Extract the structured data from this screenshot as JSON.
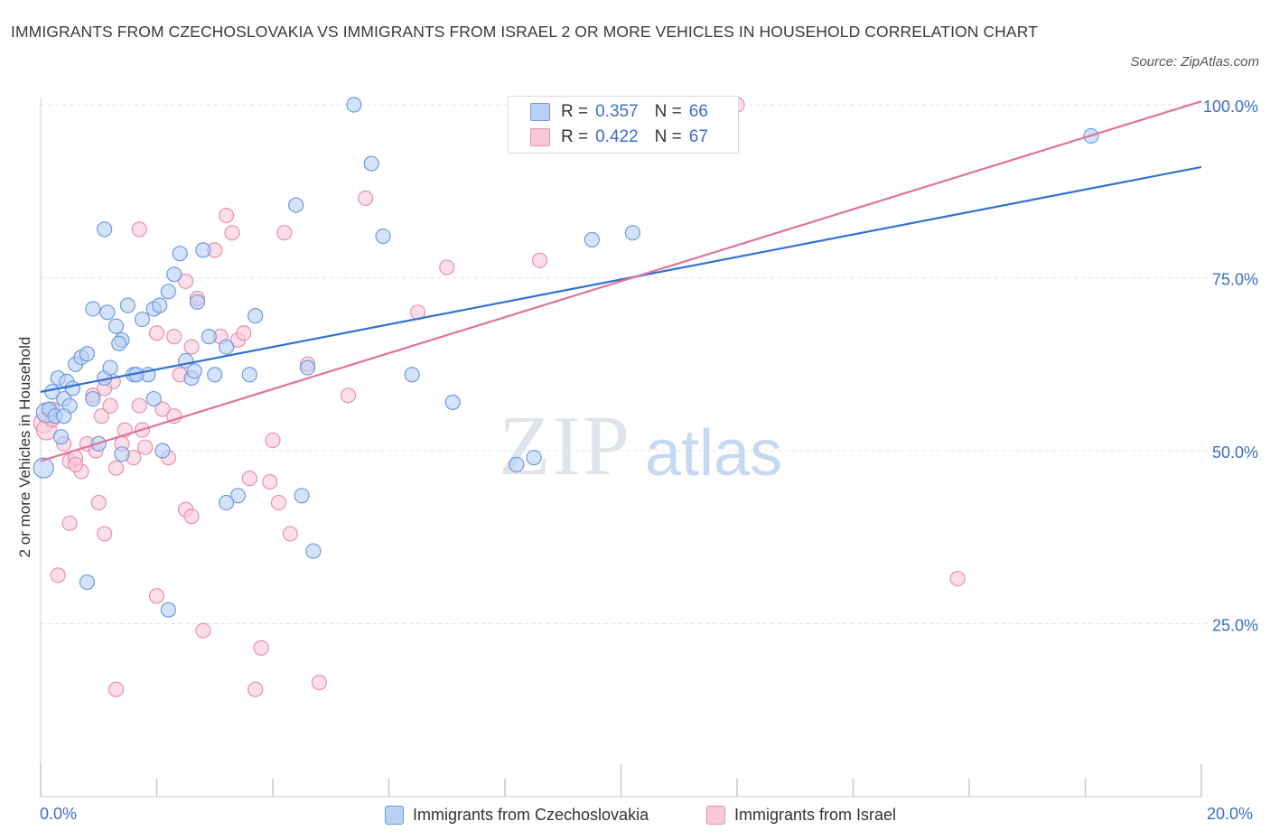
{
  "title": "IMMIGRANTS FROM CZECHOSLOVAKIA VS IMMIGRANTS FROM ISRAEL 2 OR MORE VEHICLES IN HOUSEHOLD CORRELATION CHART",
  "source": "Source: ZipAtlas.com",
  "watermark": {
    "zip": "ZIP",
    "atlas": "atlas"
  },
  "legend_top": {
    "rows": [
      {
        "r_label": "R =",
        "r_value": "0.357",
        "n_label": "N =",
        "n_value": "66"
      },
      {
        "r_label": "R =",
        "r_value": "0.422",
        "n_label": "N =",
        "n_value": "67"
      }
    ]
  },
  "colors": {
    "czech_fill": "#b8d1f5",
    "czech_stroke": "#6f9be0",
    "czech_line": "#2f72d0",
    "israel_fill": "#f8c8d8",
    "israel_stroke": "#e98fae",
    "israel_line": "#e0739a",
    "tick_label": "#3b6fc6"
  },
  "chart_data": {
    "type": "scatter",
    "xlabel": "",
    "ylabel": "2 or more Vehicles in Household",
    "xlim": [
      0,
      20
    ],
    "ylim": [
      0,
      100
    ],
    "x_tick_labels": [
      "0.0%",
      "20.0%"
    ],
    "y_ticks": [
      25,
      50,
      75,
      100
    ],
    "y_tick_labels": [
      "25.0%",
      "50.0%",
      "75.0%",
      "100.0%"
    ],
    "grid": true,
    "legend_position": "top-center",
    "series": [
      {
        "name": "Immigrants from Czechoslovakia",
        "trend": {
          "x": [
            0,
            20
          ],
          "y": [
            58.5,
            91.0
          ]
        },
        "points": [
          [
            0.05,
            47.5
          ],
          [
            0.1,
            55.5
          ],
          [
            0.15,
            56
          ],
          [
            0.2,
            58.5
          ],
          [
            0.25,
            55
          ],
          [
            0.3,
            60.5
          ],
          [
            0.35,
            52
          ],
          [
            0.4,
            57.5
          ],
          [
            0.45,
            60
          ],
          [
            0.5,
            56.5
          ],
          [
            0.6,
            62.5
          ],
          [
            0.7,
            63.5
          ],
          [
            0.8,
            64
          ],
          [
            0.9,
            57.5
          ],
          [
            1.0,
            51
          ],
          [
            1.1,
            60.5
          ],
          [
            1.2,
            62
          ],
          [
            0.9,
            70.5
          ],
          [
            1.15,
            70
          ],
          [
            1.3,
            68
          ],
          [
            1.4,
            66
          ],
          [
            1.5,
            71
          ],
          [
            1.6,
            61
          ],
          [
            1.75,
            69
          ],
          [
            1.85,
            61
          ],
          [
            1.95,
            70.5
          ],
          [
            2.05,
            71
          ],
          [
            2.2,
            73
          ],
          [
            2.3,
            75.5
          ],
          [
            2.4,
            78.5
          ],
          [
            2.5,
            63
          ],
          [
            2.6,
            60.5
          ],
          [
            2.7,
            71.5
          ],
          [
            2.8,
            79
          ],
          [
            2.9,
            66.5
          ],
          [
            3.0,
            61
          ],
          [
            3.2,
            65
          ],
          [
            3.4,
            43.5
          ],
          [
            3.6,
            61
          ],
          [
            3.7,
            69.5
          ],
          [
            2.1,
            50
          ],
          [
            1.4,
            49.5
          ],
          [
            2.2,
            27
          ],
          [
            0.8,
            31
          ],
          [
            1.1,
            82
          ],
          [
            1.35,
            65.5
          ],
          [
            1.95,
            57.5
          ],
          [
            3.2,
            42.5
          ],
          [
            4.4,
            85.5
          ],
          [
            4.5,
            43.5
          ],
          [
            4.6,
            62
          ],
          [
            4.7,
            35.5
          ],
          [
            5.4,
            100
          ],
          [
            5.7,
            91.5
          ],
          [
            5.9,
            81
          ],
          [
            6.4,
            61
          ],
          [
            7.1,
            57
          ],
          [
            8.2,
            48
          ],
          [
            8.5,
            49
          ],
          [
            9.5,
            80.5
          ],
          [
            10.2,
            81.5
          ],
          [
            18.1,
            95.5
          ],
          [
            1.65,
            61
          ],
          [
            2.65,
            61.5
          ],
          [
            0.4,
            55
          ],
          [
            0.55,
            59
          ]
        ]
      },
      {
        "name": "Immigrants from Israel",
        "trend": {
          "x": [
            0,
            20
          ],
          "y": [
            48.5,
            100.5
          ]
        },
        "points": [
          [
            0.05,
            54
          ],
          [
            0.1,
            53
          ],
          [
            0.2,
            56
          ],
          [
            0.3,
            32
          ],
          [
            0.4,
            51
          ],
          [
            0.5,
            48.5
          ],
          [
            0.6,
            49
          ],
          [
            0.7,
            47
          ],
          [
            0.8,
            51
          ],
          [
            0.9,
            58
          ],
          [
            0.95,
            50
          ],
          [
            1.0,
            42.5
          ],
          [
            1.05,
            55
          ],
          [
            1.1,
            38
          ],
          [
            1.2,
            56.5
          ],
          [
            1.25,
            60
          ],
          [
            1.3,
            47.5
          ],
          [
            1.4,
            51
          ],
          [
            1.45,
            53
          ],
          [
            1.6,
            49
          ],
          [
            1.7,
            56.5
          ],
          [
            1.75,
            53
          ],
          [
            1.8,
            50.5
          ],
          [
            2.0,
            29
          ],
          [
            2.1,
            56
          ],
          [
            2.2,
            49
          ],
          [
            2.3,
            55
          ],
          [
            2.4,
            61
          ],
          [
            2.5,
            41.5
          ],
          [
            2.6,
            40.5
          ],
          [
            2.7,
            72
          ],
          [
            2.8,
            24
          ],
          [
            3.0,
            79
          ],
          [
            3.2,
            84
          ],
          [
            3.3,
            81.5
          ],
          [
            3.6,
            46
          ],
          [
            3.7,
            15.5
          ],
          [
            3.8,
            21.5
          ],
          [
            3.95,
            45.5
          ],
          [
            4.0,
            51.5
          ],
          [
            4.1,
            42.5
          ],
          [
            4.3,
            38
          ],
          [
            4.6,
            62.5
          ],
          [
            4.8,
            16.5
          ],
          [
            5.3,
            58
          ],
          [
            5.6,
            86.5
          ],
          [
            6.5,
            70
          ],
          [
            7.0,
            76.5
          ],
          [
            8.6,
            77.5
          ],
          [
            9.2,
            100
          ],
          [
            11.8,
            100
          ],
          [
            12.0,
            100
          ],
          [
            15.8,
            31.5
          ],
          [
            0.5,
            39.5
          ],
          [
            1.7,
            82
          ],
          [
            2.5,
            74.5
          ],
          [
            2.3,
            66.5
          ],
          [
            3.1,
            66.5
          ],
          [
            3.4,
            66
          ],
          [
            4.2,
            81.5
          ],
          [
            0.2,
            54.5
          ],
          [
            0.6,
            48
          ],
          [
            1.3,
            15.5
          ],
          [
            1.1,
            59
          ],
          [
            2.0,
            67
          ],
          [
            2.6,
            65
          ],
          [
            3.5,
            67
          ]
        ]
      }
    ]
  },
  "bottom_legend": [
    {
      "label": "Immigrants from Czechoslovakia"
    },
    {
      "label": "Immigrants from Israel"
    }
  ]
}
